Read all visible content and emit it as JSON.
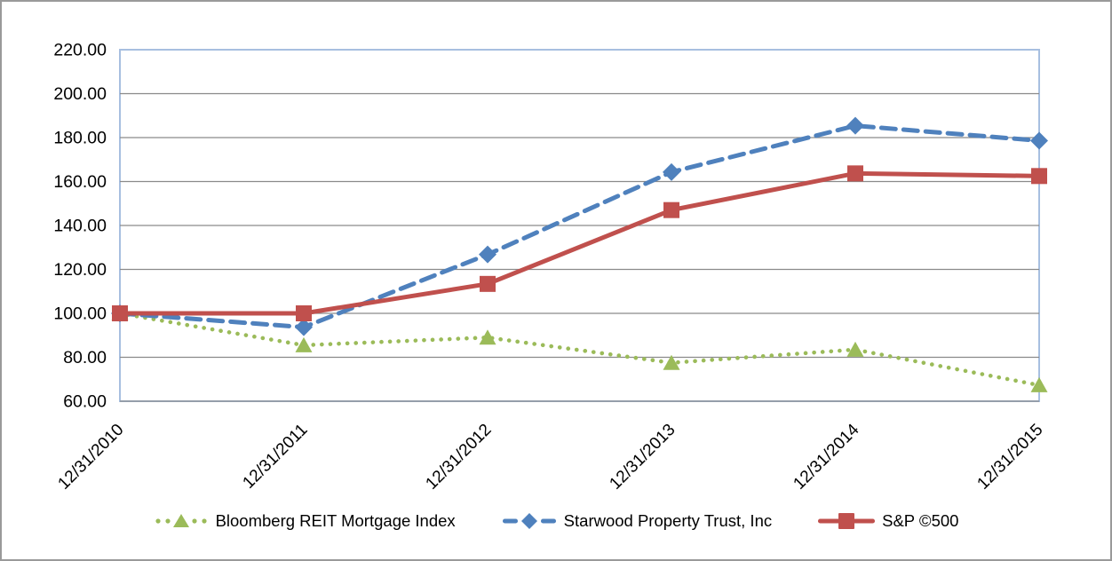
{
  "chart_data": {
    "type": "line",
    "title": "",
    "categories": [
      "12/31/2010",
      "12/31/2011",
      "12/31/2012",
      "12/31/2013",
      "12/31/2014",
      "12/31/2015"
    ],
    "series": [
      {
        "name": "Bloomberg REIT Mortgage Index",
        "color": "#9BBB59",
        "line_style": "dotted",
        "marker": "triangle",
        "values": [
          100,
          85.5,
          89,
          77.5,
          83.5,
          67.3
        ]
      },
      {
        "name": "Starwood Property Trust, Inc",
        "color": "#4F81BD",
        "line_style": "dashed",
        "marker": "diamond",
        "values": [
          100,
          93.7,
          126.8,
          164.3,
          185.4,
          178.6
        ]
      },
      {
        "name": "S&P ©500",
        "color": "#C0504D",
        "line_style": "solid",
        "marker": "square",
        "values": [
          100,
          100,
          113.4,
          147,
          163.7,
          162.5
        ]
      }
    ],
    "y_axis": {
      "min": 60,
      "max": 220,
      "step": 20,
      "tick_labels": [
        "220.00",
        "200.00",
        "180.00",
        "160.00",
        "140.00",
        "120.00",
        "100.00",
        "80.00",
        "60.00"
      ]
    },
    "x_axis": {
      "label_rotation_deg": -45
    },
    "grid": true,
    "legend_position": "bottom",
    "colors": {
      "plot_border": "#A7BFE0",
      "gridline": "#8a8a8a",
      "text": "#000000",
      "frame": "#9a9a9a",
      "background": "#ffffff"
    }
  }
}
